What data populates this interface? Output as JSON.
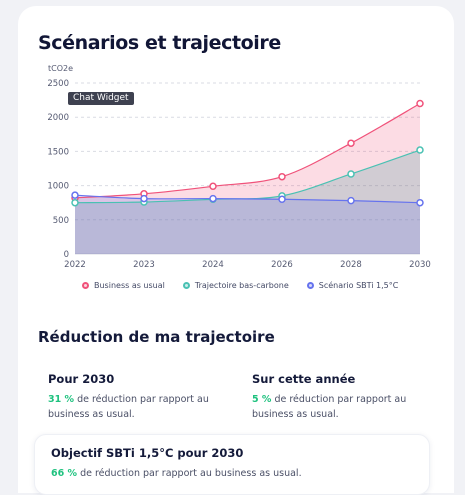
{
  "page": {
    "title": "Scénarios et trajectoire",
    "tooltip": "Chat Widget"
  },
  "colors": {
    "bau": "#f0527a",
    "bas_carbone": "#4ac1b3",
    "sbti": "#6673ee",
    "accent_green": "#1fc27f"
  },
  "chart_data": {
    "type": "area",
    "ylabel": "tCO2e",
    "xlabel": "",
    "categories": [
      "2022",
      "2023",
      "2024",
      "2026",
      "2028",
      "2030"
    ],
    "ylim": [
      0,
      2500
    ],
    "yticks": [
      "0",
      "500",
      "1000",
      "1500",
      "2000",
      "2500"
    ],
    "grid": true,
    "legend_position": "bottom",
    "series": [
      {
        "name": "Business as usual",
        "values": [
          820,
          880,
          990,
          1130,
          1620,
          2200
        ]
      },
      {
        "name": "Trajectoire bas-carbone",
        "values": [
          750,
          760,
          800,
          850,
          1170,
          1520
        ]
      },
      {
        "name": "Scénario SBTi 1,5°C",
        "values": [
          860,
          810,
          810,
          800,
          780,
          750
        ]
      }
    ]
  },
  "reduction": {
    "title": "Réduction de ma trajectoire",
    "card_2030": {
      "title": "Pour 2030",
      "pct": "31 %",
      "text": "de réduction par rapport au business as usual."
    },
    "card_year": {
      "title": "Sur cette année",
      "pct": "5 %",
      "text": "de réduction par rapport au business as usual."
    },
    "card_sbti": {
      "title": "Objectif SBTi 1,5°C pour 2030",
      "pct": "66 %",
      "text": "de réduction par rapport au business as usual."
    }
  }
}
